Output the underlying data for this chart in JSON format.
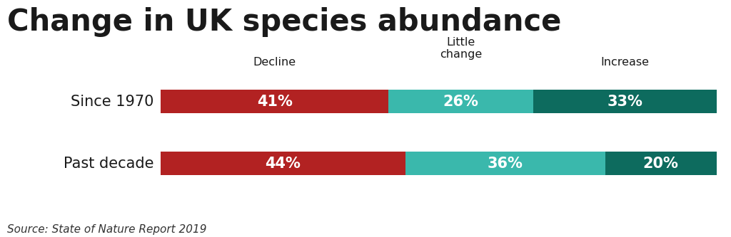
{
  "title": "Change in UK species abundance",
  "source": "Source: State of Nature Report 2019",
  "categories": [
    "Since 1970",
    "Past decade"
  ],
  "decline_vals": [
    41,
    44
  ],
  "little_change_vals": [
    26,
    36
  ],
  "increase_vals": [
    33,
    20
  ],
  "decline_color": "#b22222",
  "little_change_color": "#3ab8ac",
  "increase_color": "#0d6b5e",
  "text_color": "#ffffff",
  "label_decline": "Decline",
  "label_little_change": "Little\nchange",
  "label_increase": "Increase",
  "title_fontsize": 30,
  "label_fontsize": 11.5,
  "bar_fontsize": 15,
  "source_fontsize": 11,
  "cat_fontsize": 15,
  "background_color": "#ffffff",
  "title_color": "#1a1a1a",
  "cat_color": "#1a1a1a",
  "header_color": "#1a1a1a"
}
